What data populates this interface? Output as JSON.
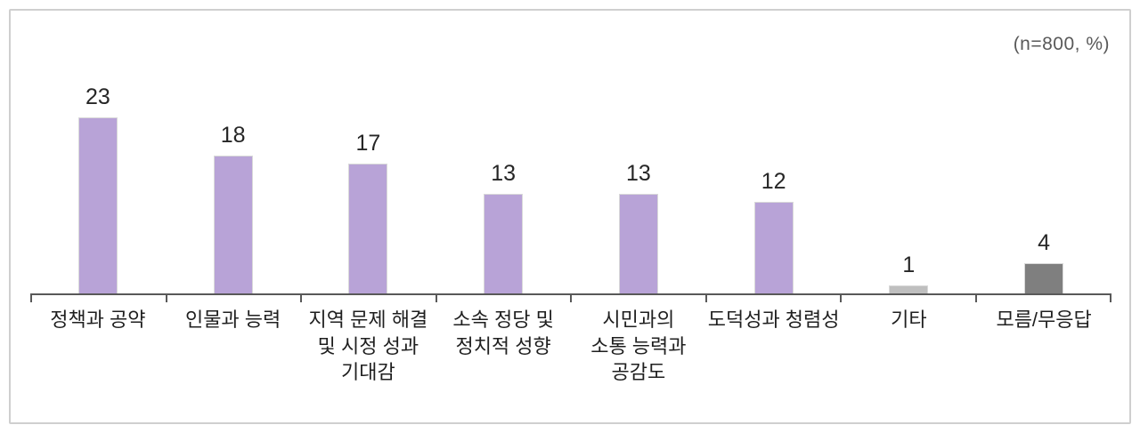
{
  "annotation": "(n=800, %)",
  "chart_data": {
    "type": "bar",
    "title": "",
    "categories": [
      "정책과 공약",
      "인물과 능력",
      "지역 문제 해결\n및 시정 성과\n기대감",
      "소속 정당 및\n정치적 성향",
      "시민과의\n소통 능력과\n공감도",
      "도덕성과 청렴성",
      "기타",
      "모름/무응답"
    ],
    "values": [
      23,
      18,
      17,
      13,
      13,
      12,
      1,
      4
    ],
    "data_labels": [
      23,
      18,
      17,
      13,
      13,
      12,
      1,
      4
    ],
    "unit": "%",
    "sample_note": "(n=800, %)",
    "bar_colors": [
      "#b8a3d7",
      "#b8a3d7",
      "#b8a3d7",
      "#b8a3d7",
      "#b8a3d7",
      "#b8a3d7",
      "#bfbfbf",
      "#7f7f7f"
    ],
    "axis_color": "#595959",
    "xlabel": "",
    "ylabel": "",
    "ylim": [
      0,
      25
    ],
    "grid": false,
    "legend": "none"
  },
  "style_colors": {
    "frame_border": "#cfcfcf",
    "value_text": "#262626",
    "category_text": "#1f1f1f",
    "annotation_text": "#595959"
  }
}
